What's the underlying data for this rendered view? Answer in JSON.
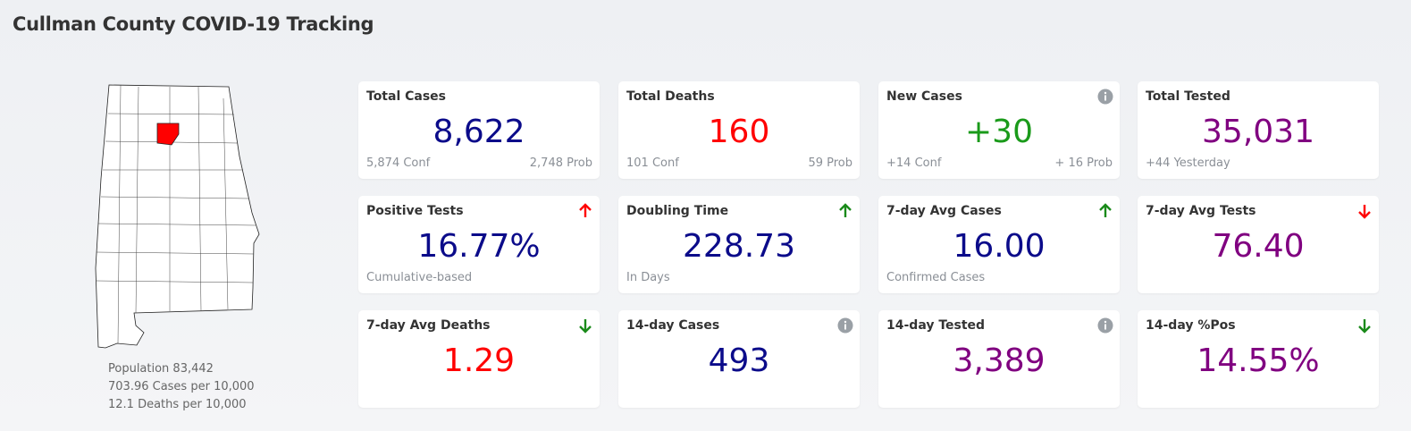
{
  "header": {
    "title": "Cullman County COVID-19 Tracking"
  },
  "map": {
    "lines": [
      "Population 83,442",
      "703.96 Cases per 10,000",
      "12.1 Deaths per 10,000"
    ]
  },
  "cards": [
    {
      "title": "Total Cases",
      "value": "8,622",
      "color": "#0b0b8a",
      "left": "5,874 Conf",
      "right": "2,748 Prob"
    },
    {
      "title": "Total Deaths",
      "value": "160",
      "color": "#ff0000",
      "left": "101 Conf",
      "right": "59 Prob"
    },
    {
      "title": "New Cases",
      "value": "+30",
      "color": "#1a9a1a",
      "left": "+14 Conf",
      "right": "+ 16 Prob",
      "icon": "info",
      "icon_color": "#9aa0a6"
    },
    {
      "title": "Total Tested",
      "value": "35,031",
      "color": "#800080",
      "left": "+44 Yesterday"
    },
    {
      "title": "Positive Tests",
      "value": "16.77%",
      "color": "#0b0b8a",
      "left": "Cumulative-based",
      "icon": "up",
      "icon_color": "#ff0000"
    },
    {
      "title": "Doubling Time",
      "value": "228.73",
      "color": "#0b0b8a",
      "left": "In Days",
      "icon": "up",
      "icon_color": "#1a8a1a"
    },
    {
      "title": "7-day Avg Cases",
      "value": "16.00",
      "color": "#0b0b8a",
      "left": "Confirmed Cases",
      "icon": "up",
      "icon_color": "#1a8a1a"
    },
    {
      "title": "7-day Avg Tests",
      "value": "76.40",
      "color": "#800080",
      "icon": "down",
      "icon_color": "#ff0000"
    },
    {
      "title": "7-day Avg Deaths",
      "value": "1.29",
      "color": "#ff0000",
      "icon": "down",
      "icon_color": "#1a8a1a"
    },
    {
      "title": "14-day Cases",
      "value": "493",
      "color": "#0b0b8a",
      "icon": "info",
      "icon_color": "#9aa0a6"
    },
    {
      "title": "14-day Tested",
      "value": "3,389",
      "color": "#800080",
      "icon": "info",
      "icon_color": "#9aa0a6"
    },
    {
      "title": "14-day %Pos",
      "value": "14.55%",
      "color": "#800080",
      "icon": "down",
      "icon_color": "#1a8a1a"
    }
  ]
}
